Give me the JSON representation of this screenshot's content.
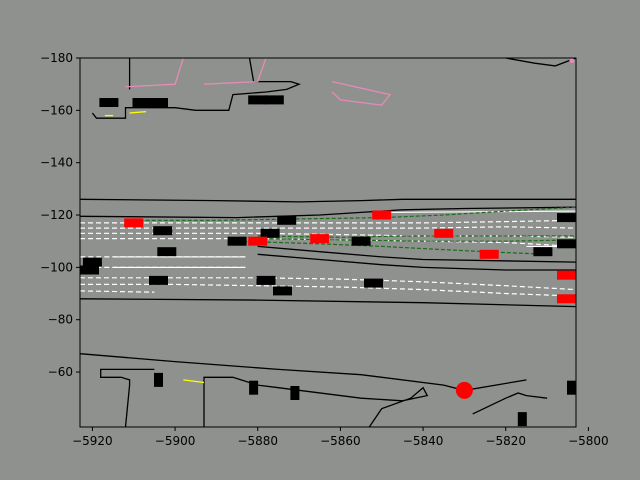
{
  "chart_data": {
    "type": "scatter",
    "title": "",
    "xlabel": "",
    "ylabel": "",
    "xlim": [
      -5923,
      -5803
    ],
    "ylim": [
      -180,
      -39
    ],
    "x_ticks": [
      -5920,
      -5900,
      -5880,
      -5860,
      -5840,
      -5820,
      -5800
    ],
    "y_ticks": [
      -60,
      -80,
      -100,
      -120,
      -140,
      -160,
      -180
    ],
    "grid": false,
    "background_color": "#8e918e",
    "road_color": "#000000",
    "lane_marking_color": "#ffffff",
    "route_color": "#1a6e1a",
    "highlight_color": "#ff0000",
    "crosswalk_color": "#e68bb5",
    "yellow_marking_color": "#ffff00",
    "road_edges": [
      [
        [
          -5923,
          -67
        ],
        [
          -5900,
          -64
        ],
        [
          -5875,
          -61
        ],
        [
          -5855,
          -59
        ],
        [
          -5835,
          -55
        ],
        [
          -5830,
          -53
        ],
        [
          -5815,
          -57
        ]
      ],
      [
        [
          -5923,
          -88
        ],
        [
          -5880,
          -87.5
        ],
        [
          -5840,
          -86.5
        ],
        [
          -5803,
          -85
        ]
      ],
      [
        [
          -5923,
          -119.5
        ],
        [
          -5885,
          -119
        ],
        [
          -5865,
          -120
        ],
        [
          -5855,
          -121
        ],
        [
          -5845,
          -122
        ],
        [
          -5830,
          -122.5
        ],
        [
          -5803,
          -123
        ]
      ],
      [
        [
          -5923,
          -126
        ],
        [
          -5890,
          -125.5
        ],
        [
          -5870,
          -125
        ],
        [
          -5855,
          -125.5
        ],
        [
          -5845,
          -126
        ],
        [
          -5803,
          -126
        ]
      ],
      [
        [
          -5880,
          -108
        ],
        [
          -5865,
          -106
        ],
        [
          -5850,
          -104
        ],
        [
          -5840,
          -103
        ],
        [
          -5803,
          -102
        ]
      ],
      [
        [
          -5880,
          -105
        ],
        [
          -5865,
          -103
        ],
        [
          -5850,
          -101
        ],
        [
          -5840,
          -100
        ],
        [
          -5820,
          -99
        ],
        [
          -5803,
          -99
        ]
      ]
    ],
    "boundary_lines": [
      [
        [
          -5912,
          -39
        ],
        [
          -5911,
          -55
        ],
        [
          -5911,
          -57
        ],
        [
          -5913,
          -58
        ],
        [
          -5918,
          -58
        ],
        [
          -5918,
          -61
        ],
        [
          -5905,
          -61
        ]
      ],
      [
        [
          -5893,
          -39
        ],
        [
          -5893,
          -58
        ],
        [
          -5886,
          -58
        ],
        [
          -5880,
          -55
        ],
        [
          -5875,
          -54
        ],
        [
          -5855,
          -50
        ],
        [
          -5845,
          -49
        ],
        [
          -5839,
          -51
        ],
        [
          -5840,
          -54
        ],
        [
          -5843,
          -50
        ],
        [
          -5850,
          -46
        ],
        [
          -5853,
          -39
        ]
      ],
      [
        [
          -5828,
          -44
        ],
        [
          -5820,
          -50
        ],
        [
          -5817,
          -52
        ],
        [
          -5815,
          -51
        ],
        [
          -5810,
          -50
        ]
      ],
      [
        [
          -5920,
          -159
        ],
        [
          -5919,
          -157
        ],
        [
          -5912,
          -157
        ],
        [
          -5912,
          -161
        ],
        [
          -5900,
          -161
        ],
        [
          -5895,
          -160
        ],
        [
          -5887,
          -160
        ],
        [
          -5886,
          -166
        ],
        [
          -5878,
          -167
        ],
        [
          -5873,
          -168
        ],
        [
          -5870,
          -170
        ],
        [
          -5872,
          -171
        ],
        [
          -5881,
          -171
        ],
        [
          -5882,
          -180
        ]
      ],
      [
        [
          -5911,
          -168
        ],
        [
          -5911,
          -180
        ]
      ],
      [
        [
          -5820,
          -180
        ],
        [
          -5813,
          -178
        ],
        [
          -5808,
          -177
        ],
        [
          -5803,
          -181
        ]
      ]
    ],
    "lane_lines": [
      [
        [
          -5923,
          -91
        ],
        [
          -5905,
          -90.5
        ]
      ],
      [
        [
          -5923,
          -93.5
        ],
        [
          -5900,
          -93.5
        ],
        [
          -5880,
          -93
        ],
        [
          -5860,
          -92.5
        ],
        [
          -5840,
          -91.5
        ],
        [
          -5820,
          -90
        ],
        [
          -5803,
          -89
        ]
      ],
      [
        [
          -5923,
          -96
        ],
        [
          -5900,
          -96
        ],
        [
          -5880,
          -96
        ],
        [
          -5860,
          -95.5
        ],
        [
          -5840,
          -94.5
        ],
        [
          -5820,
          -93
        ],
        [
          -5803,
          -91.5
        ]
      ],
      [
        [
          -5923,
          -111
        ],
        [
          -5900,
          -111
        ],
        [
          -5880,
          -111
        ],
        [
          -5860,
          -110.5
        ],
        [
          -5840,
          -110
        ],
        [
          -5820,
          -109.5
        ],
        [
          -5803,
          -108
        ]
      ],
      [
        [
          -5923,
          -113
        ],
        [
          -5900,
          -113
        ],
        [
          -5880,
          -113
        ],
        [
          -5860,
          -112.5
        ],
        [
          -5840,
          -112
        ],
        [
          -5820,
          -112
        ],
        [
          -5803,
          -111.5
        ]
      ],
      [
        [
          -5923,
          -115
        ],
        [
          -5900,
          -115
        ],
        [
          -5880,
          -115
        ],
        [
          -5860,
          -115
        ],
        [
          -5840,
          -115
        ],
        [
          -5820,
          -115.5
        ],
        [
          -5803,
          -115
        ]
      ],
      [
        [
          -5923,
          -117
        ],
        [
          -5900,
          -117
        ],
        [
          -5880,
          -117
        ],
        [
          -5860,
          -117
        ],
        [
          -5840,
          -117
        ],
        [
          -5820,
          -117.5
        ],
        [
          -5803,
          -118
        ]
      ],
      [
        [
          -5883,
          -100
        ],
        [
          -5923,
          -100
        ]
      ],
      [
        [
          -5883,
          -104
        ],
        [
          -5923,
          -104
        ]
      ]
    ],
    "solid_white_lines": [
      [
        [
          -5915,
          -100
        ],
        [
          -5883,
          -100
        ]
      ],
      [
        [
          -5915,
          -104
        ],
        [
          -5883,
          -104
        ]
      ],
      [
        [
          -5815,
          -108
        ],
        [
          -5803,
          -108
        ]
      ],
      [
        [
          -5850,
          -121
        ],
        [
          -5803,
          -121.5
        ]
      ]
    ],
    "route_lines": [
      [
        [
          -5910,
          -118
        ],
        [
          -5890,
          -118
        ],
        [
          -5870,
          -118.5
        ],
        [
          -5850,
          -119
        ],
        [
          -5835,
          -120
        ],
        [
          -5820,
          -121.5
        ],
        [
          -5803,
          -123
        ]
      ],
      [
        [
          -5885,
          -110
        ],
        [
          -5865,
          -109
        ],
        [
          -5850,
          -108
        ],
        [
          -5838,
          -107
        ],
        [
          -5825,
          -106
        ],
        [
          -5810,
          -105
        ]
      ],
      [
        [
          -5880,
          -111
        ],
        [
          -5860,
          -110.5
        ],
        [
          -5840,
          -110
        ],
        [
          -5820,
          -110
        ],
        [
          -5803,
          -110.5
        ]
      ],
      [
        [
          -5880,
          -112
        ],
        [
          -5860,
          -111.5
        ],
        [
          -5845,
          -112
        ],
        [
          -5830,
          -112
        ],
        [
          -5815,
          -112
        ],
        [
          -5803,
          -112
        ]
      ]
    ],
    "vehicles_black": [
      [
        -5921,
        -99
      ],
      [
        -5920,
        -102
      ],
      [
        -5904,
        -95
      ],
      [
        -5902,
        -106
      ],
      [
        -5903,
        -114
      ],
      [
        -5885,
        -110
      ],
      [
        -5878,
        -95
      ],
      [
        -5874,
        -91
      ],
      [
        -5877,
        -113
      ],
      [
        -5873,
        -118
      ],
      [
        -5855,
        -110
      ],
      [
        -5852,
        -94
      ],
      [
        -5811,
        -106
      ],
      [
        -5804,
        -109
      ],
      [
        -5797,
        -119
      ],
      [
        -5904,
        -57
      ],
      [
        -5881,
        -54
      ],
      [
        -5871,
        -52
      ],
      [
        -5816,
        -42
      ],
      [
        -5802,
        -54
      ],
      [
        -5916,
        -163
      ],
      [
        -5908,
        -163
      ],
      [
        -5904,
        -163
      ],
      [
        -5880,
        -164
      ],
      [
        -5876,
        -164
      ]
    ],
    "vehicles_red": [
      [
        -5910,
        -117
      ],
      [
        -5880,
        -110
      ],
      [
        -5865,
        -111
      ],
      [
        -5850,
        -120
      ],
      [
        -5835,
        -113
      ],
      [
        -5824,
        -105
      ],
      [
        -5805,
        -97
      ],
      [
        -5800,
        -88
      ]
    ],
    "ego_marker": [
      -5830,
      -53
    ],
    "crosswalks": [
      [
        [
          -5862,
          -167
        ],
        [
          -5860,
          -164
        ],
        [
          -5850,
          -162
        ],
        [
          -5848,
          -166
        ],
        [
          -5862,
          -171
        ]
      ],
      [
        [
          -5912,
          -169
        ],
        [
          -5900,
          -170
        ],
        [
          -5898,
          -180
        ]
      ],
      [
        [
          -5893,
          -170
        ],
        [
          -5880,
          -171
        ],
        [
          -5878,
          -180
        ]
      ]
    ],
    "yellow_marks": [
      [
        [
          -5898,
          -57
        ],
        [
          -5893,
          -56
        ]
      ],
      [
        [
          -5917,
          -158
        ],
        [
          -5915,
          -158
        ]
      ],
      [
        [
          -5911,
          -159
        ],
        [
          -5907,
          -159.5
        ]
      ]
    ],
    "pink_marks": [
      [
        -5804,
        -179
      ]
    ]
  }
}
